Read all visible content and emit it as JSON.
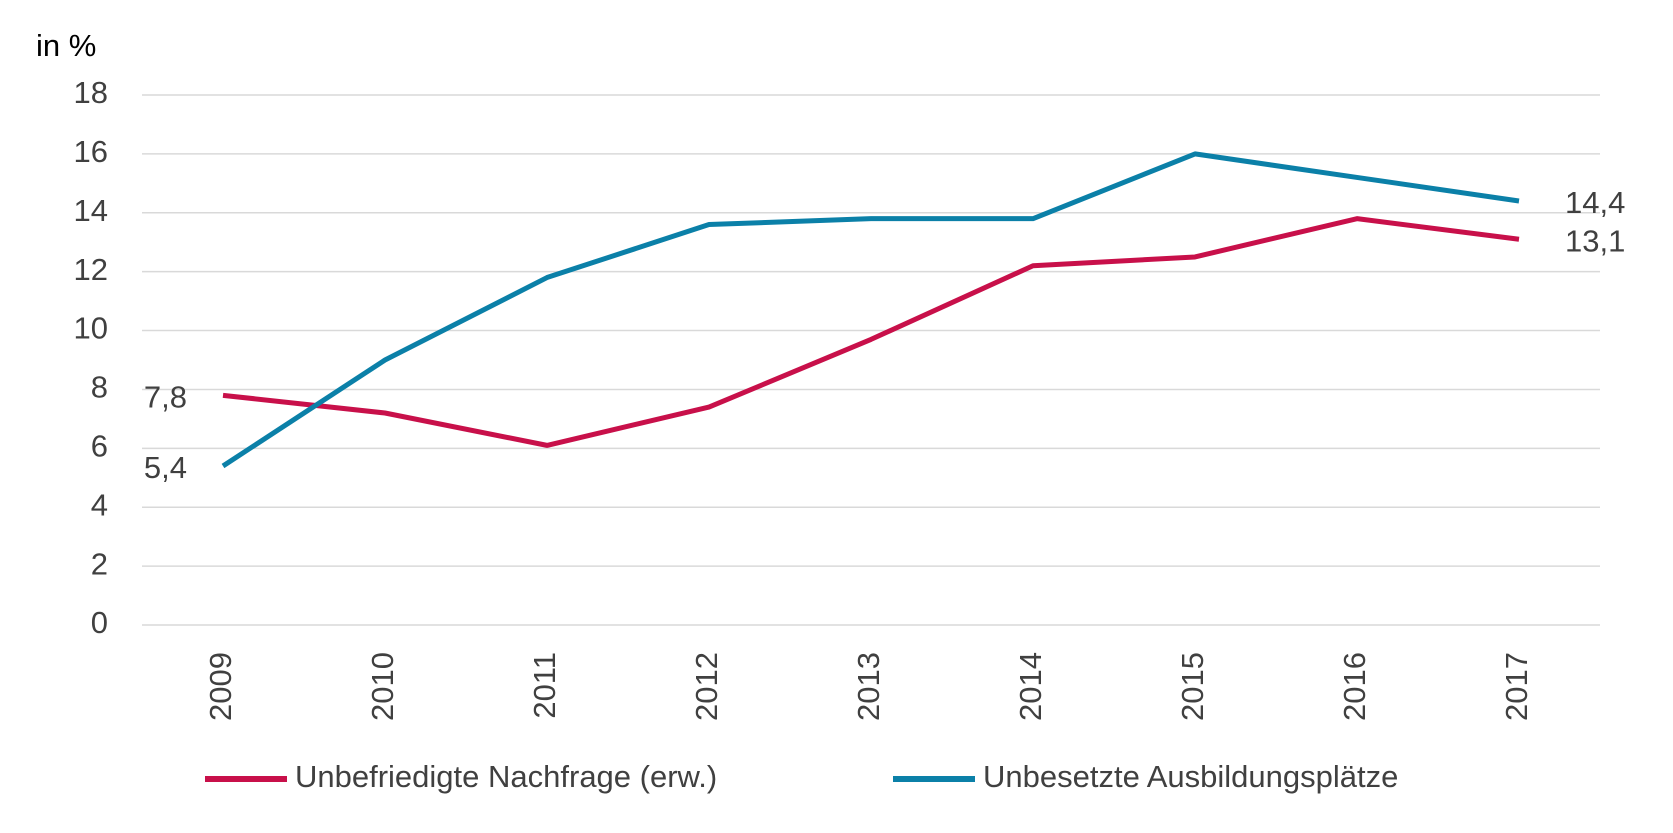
{
  "chart_data": {
    "type": "line",
    "y_label": "in %",
    "categories": [
      "2009",
      "2010",
      "2011",
      "2012",
      "2013",
      "2014",
      "2015",
      "2016",
      "2017"
    ],
    "series": [
      {
        "name": "Unbefriedigte Nachfrage (erw.)",
        "color": "#c8104a",
        "values": [
          7.8,
          7.2,
          6.1,
          7.4,
          9.7,
          12.2,
          12.5,
          13.8,
          13.1
        ],
        "value_labels": [
          "7,8",
          null,
          null,
          null,
          null,
          null,
          null,
          null,
          "13,1"
        ]
      },
      {
        "name": "Unbesetzte Ausbildungsplätze",
        "color": "#0b80a8",
        "values": [
          5.4,
          9.0,
          11.8,
          13.6,
          13.8,
          13.8,
          16.0,
          15.2,
          14.4
        ],
        "value_labels": [
          "5,4",
          null,
          null,
          null,
          null,
          null,
          null,
          null,
          "14,4"
        ]
      }
    ],
    "ylim": [
      0,
      18
    ],
    "yticks": [
      0,
      2,
      4,
      6,
      8,
      10,
      12,
      14,
      16,
      18
    ],
    "grid": true,
    "legend": "bottom"
  }
}
